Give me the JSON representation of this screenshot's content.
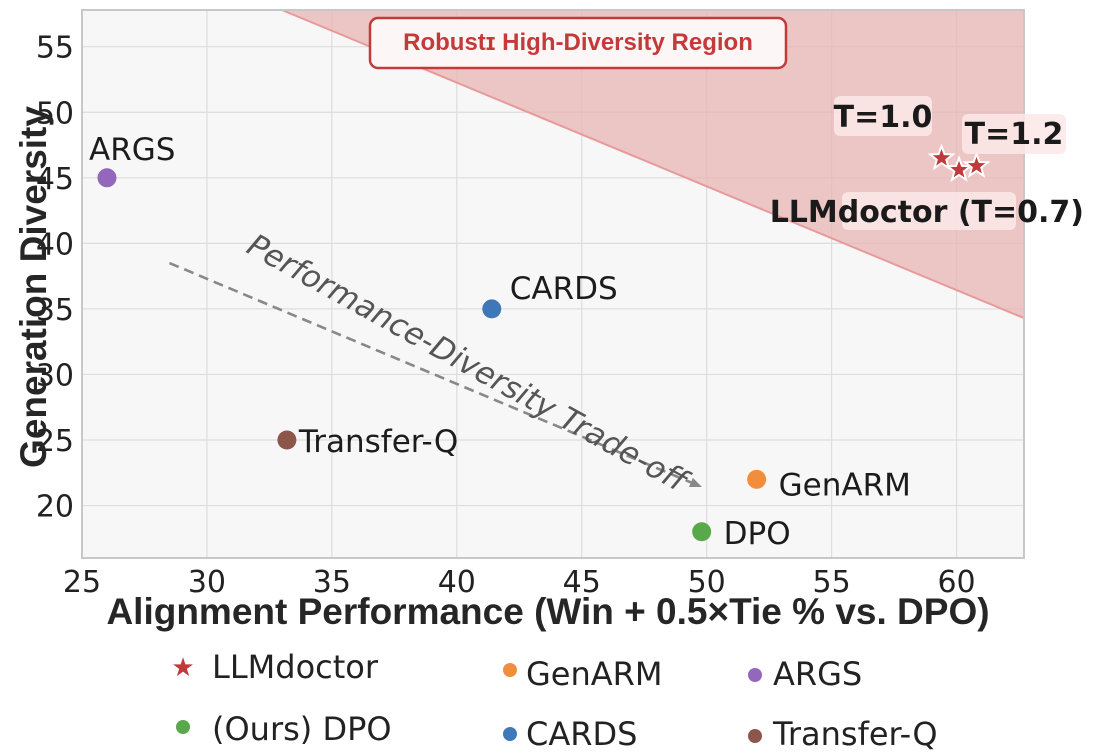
{
  "chart_data": {
    "type": "scatter",
    "xlabel": "Alignment Performance (Win + 0.5×Tie % vs. DPO)",
    "ylabel": "Generation Diversity",
    "xlim": [
      25,
      62.7
    ],
    "ylim": [
      16,
      57.8
    ],
    "xticks": [
      "25",
      "30",
      "35",
      "40",
      "45",
      "50",
      "55",
      "60"
    ],
    "yticks": [
      "20",
      "25",
      "30",
      "35",
      "40",
      "45",
      "50",
      "55"
    ],
    "grid": true,
    "region": {
      "label": "Robustɪ High-Diversity Region",
      "color": "#e8b4b4",
      "boundary": [
        [
          33,
          58
        ],
        [
          62.7,
          34.3
        ]
      ]
    },
    "trend": {
      "label": "Performance-Diversity Trade-off",
      "from": [
        28.5,
        38.5
      ],
      "to": [
        49.7,
        21.5
      ]
    },
    "series": [
      {
        "name": "LLMdoctor",
        "marker": "star",
        "color": "#c0393b",
        "points": [
          {
            "x": 59.4,
            "y": 46.5
          },
          {
            "x": 60.1,
            "y": 45.6
          },
          {
            "x": 60.8,
            "y": 45.9
          }
        ]
      },
      {
        "name": "GenARM",
        "marker": "circle",
        "color": "#f28e3b",
        "points": [
          {
            "x": 52.0,
            "y": 22.0,
            "label": "GenARM"
          }
        ]
      },
      {
        "name": "ARGS",
        "marker": "circle",
        "color": "#9467bd",
        "points": [
          {
            "x": 26.0,
            "y": 45.0,
            "label": "ARGS"
          }
        ]
      },
      {
        "name": "DPO",
        "marker": "circle",
        "color": "#59a84b",
        "points": [
          {
            "x": 49.8,
            "y": 18.0,
            "label": "DPO"
          }
        ]
      },
      {
        "name": "CARDS",
        "marker": "circle",
        "color": "#3e78b8",
        "points": [
          {
            "x": 41.4,
            "y": 35.0,
            "label": "CARDS"
          }
        ]
      },
      {
        "name": "Transfer-Q",
        "marker": "circle",
        "color": "#8c564b",
        "points": [
          {
            "x": 33.2,
            "y": 25.0,
            "label": "Transfer-Q"
          }
        ]
      }
    ],
    "annotations": [
      {
        "text": "T=1.0"
      },
      {
        "text": "T=1.2"
      },
      {
        "text": "LLMdoctor (T=0.7)"
      }
    ],
    "legend": {
      "position": "bottom",
      "entries": [
        {
          "label": "LLMdoctor",
          "color": "#c0393b",
          "marker": "star"
        },
        {
          "label": "GenARM",
          "color": "#f28e3b",
          "marker": "circle"
        },
        {
          "label": "ARGS",
          "color": "#9467bd",
          "marker": "circle"
        },
        {
          "label": "(Ours) DPO",
          "color": "#59a84b",
          "marker": "circle"
        },
        {
          "label": "CARDS",
          "color": "#3e78b8",
          "marker": "circle"
        },
        {
          "label": "Transfer-Q",
          "color": "#8c564b",
          "marker": "circle"
        }
      ]
    }
  }
}
